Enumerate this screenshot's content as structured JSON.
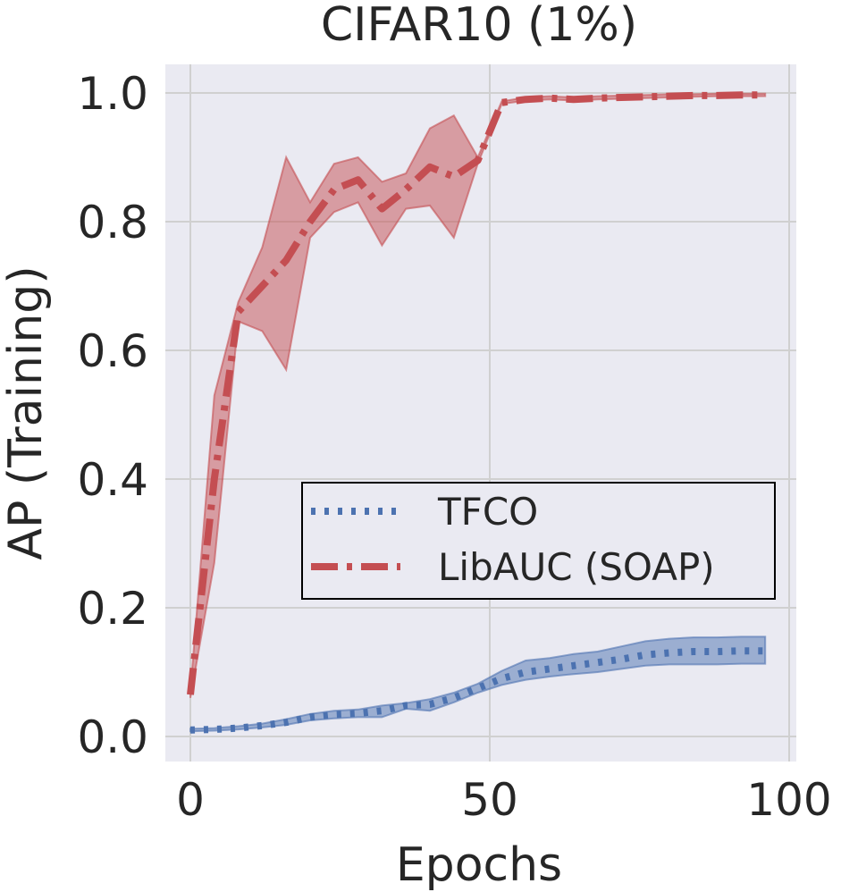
{
  "chart_data": {
    "type": "line",
    "title": "CIFAR10 (1%)",
    "xlabel": "Epochs",
    "ylabel": "AP (Training)",
    "xlim": [
      -4,
      101
    ],
    "ylim": [
      -0.04,
      1.05
    ],
    "xticks": [
      0,
      50,
      100
    ],
    "xtick_labels": [
      "0",
      "50",
      "100"
    ],
    "yticks": [
      0.0,
      0.2,
      0.4,
      0.6,
      0.8,
      1.0
    ],
    "ytick_labels": [
      "0.0",
      "0.2",
      "0.4",
      "0.6",
      "0.8",
      "1.0"
    ],
    "grid": true,
    "legend_position": "center-right",
    "series": [
      {
        "name": "TFCO",
        "color": "#4c72b0",
        "style": "dotted",
        "x": [
          0,
          4,
          8,
          12,
          16,
          20,
          24,
          28,
          32,
          36,
          40,
          44,
          48,
          52,
          56,
          60,
          64,
          68,
          72,
          76,
          80,
          84,
          88,
          92,
          96
        ],
        "y": [
          0.01,
          0.011,
          0.013,
          0.017,
          0.022,
          0.03,
          0.034,
          0.036,
          0.04,
          0.048,
          0.05,
          0.06,
          0.075,
          0.09,
          0.1,
          0.105,
          0.11,
          0.115,
          0.12,
          0.127,
          0.13,
          0.132,
          0.132,
          0.133,
          0.133
        ],
        "lower": [
          0.008,
          0.009,
          0.011,
          0.014,
          0.018,
          0.025,
          0.028,
          0.03,
          0.03,
          0.043,
          0.04,
          0.053,
          0.068,
          0.08,
          0.088,
          0.093,
          0.097,
          0.1,
          0.105,
          0.11,
          0.112,
          0.112,
          0.112,
          0.113,
          0.113
        ],
        "upper": [
          0.012,
          0.013,
          0.016,
          0.02,
          0.027,
          0.035,
          0.04,
          0.042,
          0.048,
          0.052,
          0.058,
          0.068,
          0.082,
          0.102,
          0.118,
          0.122,
          0.128,
          0.132,
          0.14,
          0.148,
          0.152,
          0.154,
          0.154,
          0.155,
          0.155
        ]
      },
      {
        "name": "LibAUC (SOAP)",
        "color": "#c44e52",
        "style": "dashdot",
        "x": [
          0,
          4,
          8,
          12,
          16,
          20,
          24,
          28,
          32,
          36,
          40,
          44,
          48,
          52,
          56,
          60,
          64,
          68,
          72,
          76,
          80,
          84,
          88,
          92,
          96
        ],
        "y": [
          0.065,
          0.4,
          0.66,
          0.7,
          0.74,
          0.8,
          0.85,
          0.865,
          0.82,
          0.85,
          0.885,
          0.87,
          0.895,
          0.985,
          0.99,
          0.992,
          0.99,
          0.992,
          0.993,
          0.994,
          0.995,
          0.996,
          0.996,
          0.997,
          0.997
        ],
        "lower": [
          0.06,
          0.27,
          0.645,
          0.63,
          0.57,
          0.775,
          0.815,
          0.83,
          0.763,
          0.82,
          0.825,
          0.775,
          0.89,
          0.983,
          0.988,
          0.99,
          0.988,
          0.99,
          0.991,
          0.992,
          0.993,
          0.994,
          0.995,
          0.995,
          0.995
        ],
        "upper": [
          0.07,
          0.53,
          0.675,
          0.76,
          0.9,
          0.83,
          0.89,
          0.9,
          0.862,
          0.875,
          0.945,
          0.965,
          0.9,
          0.987,
          0.993,
          0.995,
          0.993,
          0.995,
          0.996,
          0.997,
          0.998,
          0.998,
          0.999,
          0.999,
          0.999
        ]
      }
    ]
  }
}
